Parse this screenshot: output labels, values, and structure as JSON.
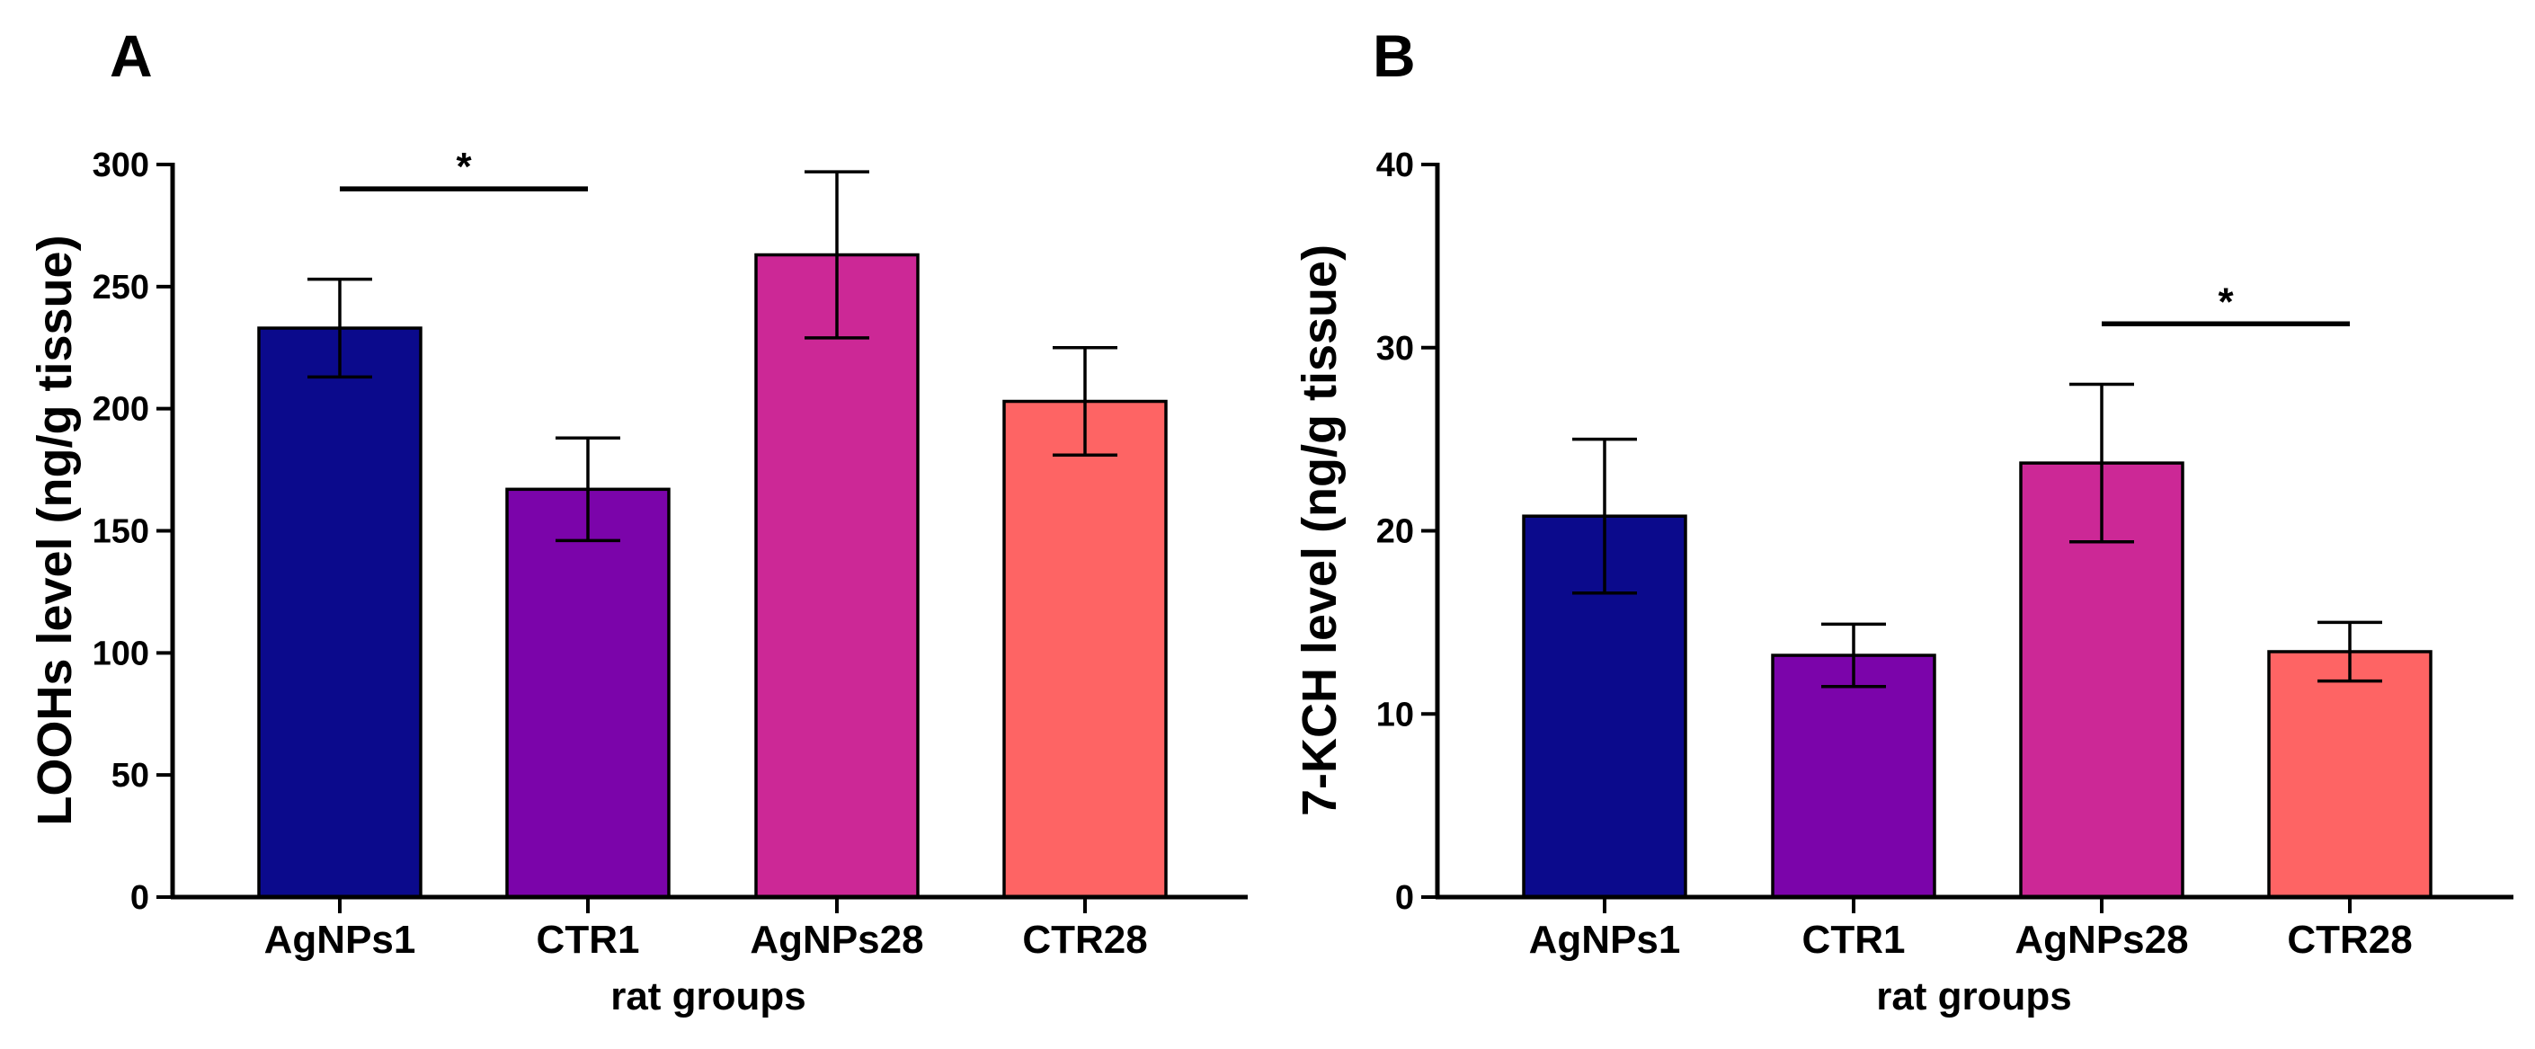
{
  "chart_data": [
    {
      "type": "bar",
      "panel_label": "A",
      "categories": [
        "AgNPs1",
        "CTR1",
        "AgNPs28",
        "CTR28"
      ],
      "values": [
        233,
        167,
        263,
        203
      ],
      "errors": [
        20,
        21,
        34,
        22
      ],
      "colors": [
        "#0b0a8c",
        "#7b04aa",
        "#cc2896",
        "#fe6464"
      ],
      "ylabel": "LOOHs level (ng/g tissue)",
      "xlabel": "rat groups",
      "ylim": [
        0,
        300
      ],
      "yticks": [
        0,
        50,
        100,
        150,
        200,
        250,
        300
      ],
      "significance": [
        {
          "from": "AgNPs1",
          "to": "CTR1",
          "y": 290,
          "label": "*"
        }
      ]
    },
    {
      "type": "bar",
      "panel_label": "B",
      "categories": [
        "AgNPs1",
        "CTR1",
        "AgNPs28",
        "CTR28"
      ],
      "values": [
        20.8,
        13.2,
        23.7,
        13.4
      ],
      "errors": [
        4.2,
        1.7,
        4.3,
        1.6
      ],
      "colors": [
        "#0b0a8c",
        "#7b04aa",
        "#cc2896",
        "#fe6464"
      ],
      "ylabel": "7-KCH level (ng/g tissue)",
      "xlabel": "rat groups",
      "ylim": [
        0,
        40
      ],
      "yticks": [
        0,
        10,
        20,
        30,
        40
      ],
      "significance": [
        {
          "from": "AgNPs28",
          "to": "CTR28",
          "y": 31.3,
          "label": "*"
        }
      ]
    }
  ]
}
